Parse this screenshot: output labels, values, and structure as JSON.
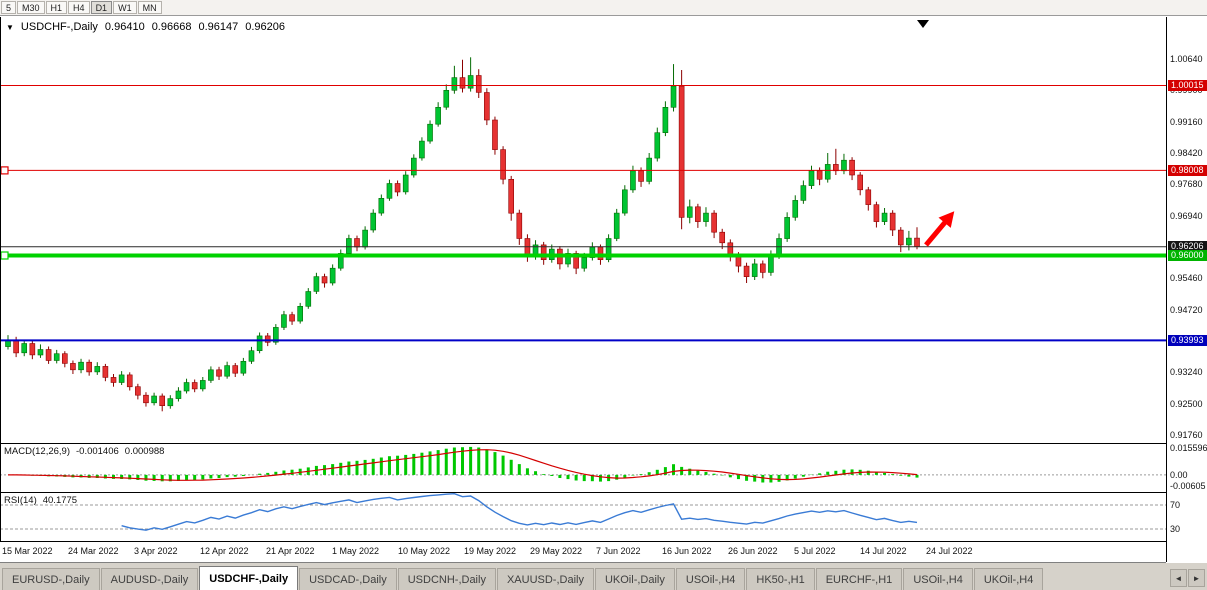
{
  "toolbar": {
    "timeframes": [
      "5",
      "M30",
      "H1",
      "H4",
      "D1",
      "W1",
      "MN"
    ],
    "active": "D1"
  },
  "chart": {
    "symbol_title": "USDCHF-,Daily",
    "ohlc": {
      "open": "0.96410",
      "high": "0.96668",
      "low": "0.96147",
      "close": "0.96206"
    },
    "price_scale": [
      "1.00640",
      "0.99900",
      "0.99160",
      "0.98420",
      "0.97680",
      "0.96940",
      "0.95460",
      "0.94720",
      "0.93240",
      "0.92500",
      "0.91760"
    ],
    "badges": [
      {
        "text": "1.00015",
        "color": "#d40000"
      },
      {
        "text": "0.98008",
        "color": "#d40000"
      },
      {
        "text": "0.96206",
        "color": "#141414"
      },
      {
        "text": "0.96000",
        "color": "#00b400"
      },
      {
        "text": "0.93993",
        "color": "#0000bb"
      }
    ],
    "hlines": [
      {
        "name": "resistance-line-upper",
        "value": 1.00015,
        "color": "#e00000",
        "width": 1
      },
      {
        "name": "resistance-line-lower",
        "value": 0.98008,
        "color": "#e00000",
        "width": 1,
        "handle": true
      },
      {
        "name": "current-price-line",
        "value": 0.96206,
        "color": "#2a2a2a",
        "width": 1
      },
      {
        "name": "support-line-green",
        "value": 0.96,
        "color": "#00d200",
        "width": 4,
        "handle": true
      },
      {
        "name": "support-line-blue",
        "value": 0.93993,
        "color": "#0000c8",
        "width": 2
      }
    ]
  },
  "chart_data": {
    "type": "candlestick",
    "title": "USDCHF-,Daily",
    "y_range": [
      0.91571,
      1.01632
    ],
    "x_labels": [
      "15 Mar 2022",
      "24 Mar 2022",
      "3 Apr 2022",
      "12 Apr 2022",
      "21 Apr 2022",
      "1 May 2022",
      "10 May 2022",
      "19 May 2022",
      "29 May 2022",
      "7 Jun 2022",
      "16 Jun 2022",
      "26 Jun 2022",
      "5 Jul 2022",
      "14 Jul 2022",
      "24 Jul 2022"
    ],
    "candles": [
      [
        0.9385,
        0.9412,
        0.9378,
        0.94
      ],
      [
        0.94,
        0.9408,
        0.936,
        0.937
      ],
      [
        0.937,
        0.94,
        0.9362,
        0.9392
      ],
      [
        0.9392,
        0.9398,
        0.9355,
        0.9365
      ],
      [
        0.9365,
        0.939,
        0.9358,
        0.9378
      ],
      [
        0.9378,
        0.9385,
        0.9344,
        0.9352
      ],
      [
        0.9352,
        0.9377,
        0.9345,
        0.9368
      ],
      [
        0.9368,
        0.9374,
        0.9336,
        0.9345
      ],
      [
        0.9345,
        0.9352,
        0.932,
        0.933
      ],
      [
        0.933,
        0.9356,
        0.9322,
        0.9348
      ],
      [
        0.9348,
        0.9354,
        0.9316,
        0.9325
      ],
      [
        0.9325,
        0.9348,
        0.9318,
        0.9338
      ],
      [
        0.9338,
        0.9344,
        0.9303,
        0.9312
      ],
      [
        0.9312,
        0.932,
        0.929,
        0.93
      ],
      [
        0.93,
        0.9327,
        0.9294,
        0.9318
      ],
      [
        0.9318,
        0.9324,
        0.9281,
        0.929
      ],
      [
        0.929,
        0.9297,
        0.926,
        0.927
      ],
      [
        0.927,
        0.9277,
        0.9243,
        0.9252
      ],
      [
        0.9252,
        0.9276,
        0.9246,
        0.9268
      ],
      [
        0.9268,
        0.9274,
        0.9232,
        0.9245
      ],
      [
        0.9245,
        0.927,
        0.9238,
        0.9262
      ],
      [
        0.9262,
        0.9289,
        0.9255,
        0.928
      ],
      [
        0.928,
        0.9309,
        0.9274,
        0.93
      ],
      [
        0.93,
        0.9307,
        0.9277,
        0.9285
      ],
      [
        0.9285,
        0.9313,
        0.9279,
        0.9305
      ],
      [
        0.9305,
        0.9338,
        0.9299,
        0.933
      ],
      [
        0.933,
        0.9337,
        0.9306,
        0.9315
      ],
      [
        0.9315,
        0.9349,
        0.9309,
        0.934
      ],
      [
        0.934,
        0.9346,
        0.9313,
        0.9322
      ],
      [
        0.9322,
        0.9358,
        0.9316,
        0.935
      ],
      [
        0.935,
        0.9384,
        0.9344,
        0.9375
      ],
      [
        0.9375,
        0.9418,
        0.9369,
        0.941
      ],
      [
        0.941,
        0.9417,
        0.9386,
        0.9395
      ],
      [
        0.9395,
        0.9438,
        0.9389,
        0.943
      ],
      [
        0.943,
        0.9469,
        0.9424,
        0.946
      ],
      [
        0.946,
        0.9467,
        0.9436,
        0.9445
      ],
      [
        0.9445,
        0.9488,
        0.9439,
        0.948
      ],
      [
        0.948,
        0.9523,
        0.9474,
        0.9515
      ],
      [
        0.9515,
        0.9559,
        0.9509,
        0.955
      ],
      [
        0.955,
        0.9557,
        0.9524,
        0.9535
      ],
      [
        0.9535,
        0.9579,
        0.9529,
        0.957
      ],
      [
        0.957,
        0.9614,
        0.9564,
        0.9605
      ],
      [
        0.9605,
        0.9649,
        0.9599,
        0.964
      ],
      [
        0.964,
        0.9647,
        0.961,
        0.962
      ],
      [
        0.962,
        0.9669,
        0.9614,
        0.966
      ],
      [
        0.966,
        0.9709,
        0.9654,
        0.97
      ],
      [
        0.97,
        0.9744,
        0.9694,
        0.9735
      ],
      [
        0.9735,
        0.9779,
        0.9729,
        0.977
      ],
      [
        0.977,
        0.9777,
        0.974,
        0.975
      ],
      [
        0.975,
        0.9799,
        0.9744,
        0.979
      ],
      [
        0.979,
        0.9839,
        0.9784,
        0.983
      ],
      [
        0.983,
        0.9879,
        0.9824,
        0.987
      ],
      [
        0.987,
        0.9919,
        0.9864,
        0.991
      ],
      [
        0.991,
        0.9962,
        0.9904,
        0.995
      ],
      [
        0.995,
        1.0004,
        0.9944,
        0.999
      ],
      [
        0.999,
        1.0048,
        0.9982,
        1.002
      ],
      [
        1.002,
        1.0062,
        0.9985,
        0.9995
      ],
      [
        0.9995,
        1.0068,
        0.9987,
        1.0025
      ],
      [
        1.0025,
        1.004,
        0.9972,
        0.9985
      ],
      [
        0.9985,
        0.9995,
        0.9908,
        0.992
      ],
      [
        0.992,
        0.9928,
        0.9838,
        0.985
      ],
      [
        0.985,
        0.9858,
        0.9768,
        0.978
      ],
      [
        0.978,
        0.9788,
        0.9682,
        0.97
      ],
      [
        0.97,
        0.9708,
        0.9625,
        0.964
      ],
      [
        0.964,
        0.965,
        0.9585,
        0.96
      ],
      [
        0.96,
        0.9636,
        0.959,
        0.9625
      ],
      [
        0.9625,
        0.9632,
        0.9578,
        0.959
      ],
      [
        0.959,
        0.9626,
        0.9583,
        0.9615
      ],
      [
        0.9615,
        0.9622,
        0.9567,
        0.958
      ],
      [
        0.958,
        0.9616,
        0.9572,
        0.9605
      ],
      [
        0.9605,
        0.9611,
        0.9556,
        0.957
      ],
      [
        0.957,
        0.9606,
        0.9562,
        0.9595
      ],
      [
        0.9595,
        0.9631,
        0.9588,
        0.962
      ],
      [
        0.962,
        0.9626,
        0.9578,
        0.959
      ],
      [
        0.959,
        0.965,
        0.9584,
        0.964
      ],
      [
        0.964,
        0.971,
        0.9634,
        0.97
      ],
      [
        0.97,
        0.9766,
        0.9694,
        0.9755
      ],
      [
        0.9755,
        0.9812,
        0.9748,
        0.98
      ],
      [
        0.98,
        0.9808,
        0.9762,
        0.9775
      ],
      [
        0.9775,
        0.9842,
        0.9768,
        0.983
      ],
      [
        0.983,
        0.9902,
        0.9822,
        0.989
      ],
      [
        0.989,
        0.9964,
        0.9882,
        0.995
      ],
      [
        0.995,
        1.0052,
        0.994,
        1.0
      ],
      [
        1.0,
        1.0038,
        0.9662,
        0.969
      ],
      [
        0.969,
        0.9732,
        0.9676,
        0.9715
      ],
      [
        0.9715,
        0.9722,
        0.9665,
        0.968
      ],
      [
        0.968,
        0.9714,
        0.9668,
        0.97
      ],
      [
        0.97,
        0.9707,
        0.9641,
        0.9655
      ],
      [
        0.9655,
        0.9663,
        0.9615,
        0.963
      ],
      [
        0.963,
        0.9638,
        0.9586,
        0.96
      ],
      [
        0.96,
        0.9608,
        0.956,
        0.9575
      ],
      [
        0.9575,
        0.9583,
        0.9535,
        0.955
      ],
      [
        0.955,
        0.9592,
        0.9542,
        0.958
      ],
      [
        0.958,
        0.9588,
        0.9546,
        0.956
      ],
      [
        0.956,
        0.9612,
        0.9552,
        0.96
      ],
      [
        0.96,
        0.9652,
        0.9592,
        0.964
      ],
      [
        0.964,
        0.9702,
        0.9632,
        0.969
      ],
      [
        0.969,
        0.9742,
        0.9682,
        0.973
      ],
      [
        0.973,
        0.9777,
        0.9722,
        0.9765
      ],
      [
        0.9765,
        0.9812,
        0.9757,
        0.98
      ],
      [
        0.98,
        0.9808,
        0.9766,
        0.978
      ],
      [
        0.978,
        0.9842,
        0.9772,
        0.9815
      ],
      [
        0.9815,
        0.9852,
        0.979,
        0.98
      ],
      [
        0.98,
        0.984,
        0.9792,
        0.9825
      ],
      [
        0.9825,
        0.9832,
        0.9778,
        0.979
      ],
      [
        0.979,
        0.9797,
        0.9742,
        0.9755
      ],
      [
        0.9755,
        0.9762,
        0.9706,
        0.972
      ],
      [
        0.972,
        0.9727,
        0.9666,
        0.968
      ],
      [
        0.968,
        0.9712,
        0.9672,
        0.97
      ],
      [
        0.97,
        0.9707,
        0.9646,
        0.966
      ],
      [
        0.966,
        0.9667,
        0.9608,
        0.9625
      ],
      [
        0.9625,
        0.9658,
        0.9612,
        0.9641
      ],
      [
        0.9641,
        0.96668,
        0.96147,
        0.96206
      ]
    ],
    "indicators": {
      "macd": {
        "label": "MACD(12,26,9)",
        "main_value": "-0.001406",
        "signal_value": "0.000988",
        "params": [
          12,
          26,
          9
        ],
        "scale": [
          {
            "text": "0.015596",
            "value": 0.015596
          },
          {
            "text": "0.00",
            "value": 0
          },
          {
            "text": "-0.00605",
            "value": -0.00605
          }
        ],
        "range": [
          -0.009,
          0.0162
        ]
      },
      "rsi": {
        "label": "RSI(14)",
        "value": "40.1775",
        "period": 14,
        "levels": [
          70,
          30
        ],
        "range": [
          10,
          90
        ]
      }
    }
  },
  "annotations": {
    "arrow_color": "#ff0000"
  },
  "colors": {
    "candle_up": "#00c432",
    "candle_up_stroke": "#046b04",
    "candle_down": "#e63232",
    "candle_down_stroke": "#8c0000",
    "macd_hist": "#00c800",
    "macd_signal": "#d40000",
    "rsi_line": "#3a7bd5",
    "level_dash": "#9a9a9a"
  },
  "tabs": {
    "items": [
      {
        "label": "EURUSD-,Daily",
        "active": false
      },
      {
        "label": "AUDUSD-,Daily",
        "active": false
      },
      {
        "label": "USDCHF-,Daily",
        "active": true
      },
      {
        "label": "USDCAD-,Daily",
        "active": false
      },
      {
        "label": "USDCNH-,Daily",
        "active": false
      },
      {
        "label": "XAUUSD-,Daily",
        "active": false
      },
      {
        "label": "UKOil-,Daily",
        "active": false
      },
      {
        "label": "USOil-,H4",
        "active": false
      },
      {
        "label": "HK50-,H1",
        "active": false
      },
      {
        "label": "EURCHF-,H1",
        "active": false
      },
      {
        "label": "USOil-,H4",
        "active": false
      },
      {
        "label": "UKOil-,H4",
        "active": false
      }
    ],
    "scroll_left": "◄",
    "scroll_right": "►"
  }
}
